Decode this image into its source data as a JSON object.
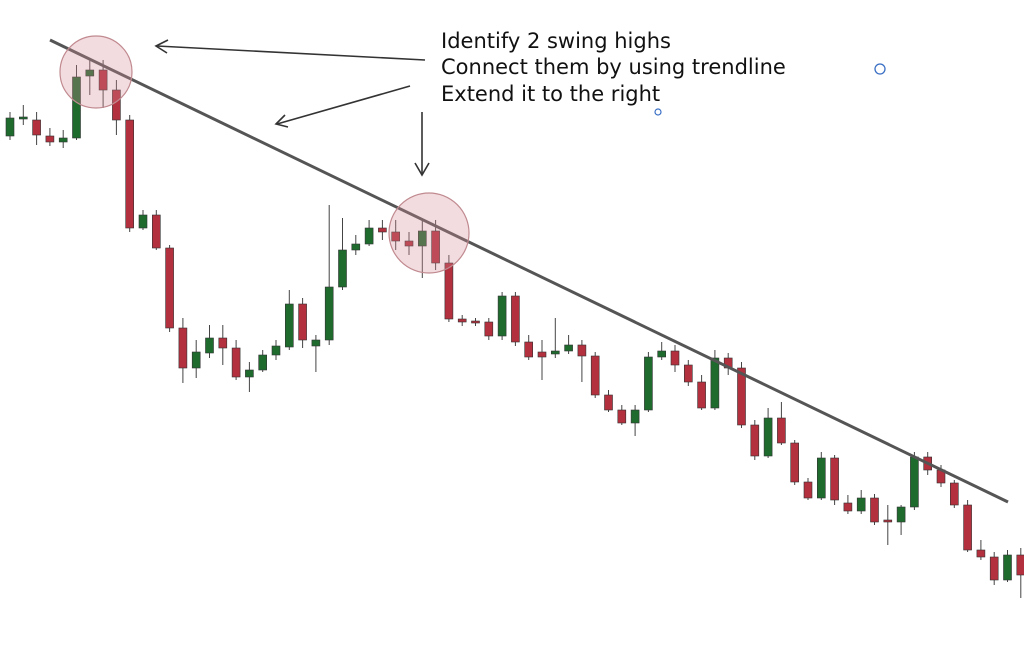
{
  "chart_data": {
    "type": "candlestick",
    "annotations": [
      "Identify 2 swing highs",
      "Connect them by using trendline",
      "Extend it to the right"
    ],
    "up_color": "#1f6b2e",
    "down_color": "#b3303e",
    "ylim": [
      0,
      600
    ],
    "open": [
      464,
      481,
      480,
      464,
      458,
      462,
      524,
      530,
      510,
      480,
      372,
      385,
      352,
      272,
      232,
      247,
      262,
      252,
      223,
      230,
      245,
      253,
      296,
      254,
      260,
      313,
      350,
      356,
      372,
      368,
      359,
      354,
      369,
      337,
      281,
      279,
      278,
      264,
      304,
      258,
      248,
      246,
      249,
      255,
      244,
      205,
      190,
      177,
      190,
      243,
      249,
      235,
      218,
      192,
      242,
      232,
      175,
      144,
      182,
      157,
      118,
      102,
      142,
      97,
      89,
      102,
      80,
      78,
      93,
      143,
      130,
      117,
      95,
      50,
      43,
      20,
      45
    ],
    "high": [
      488,
      495,
      488,
      472,
      470,
      535,
      540,
      540,
      520,
      485,
      390,
      390,
      355,
      282,
      260,
      275,
      275,
      260,
      238,
      250,
      260,
      310,
      302,
      265,
      395,
      382,
      365,
      380,
      380,
      380,
      368,
      380,
      380,
      345,
      285,
      282,
      282,
      308,
      308,
      265,
      260,
      282,
      265,
      260,
      248,
      210,
      195,
      195,
      248,
      258,
      255,
      240,
      225,
      250,
      247,
      238,
      180,
      192,
      198,
      160,
      122,
      148,
      145,
      105,
      110,
      106,
      95,
      95,
      148,
      148,
      135,
      120,
      100,
      60,
      48,
      50,
      52
    ],
    "low": [
      460,
      475,
      455,
      454,
      452,
      460,
      505,
      492,
      465,
      368,
      370,
      350,
      268,
      217,
      222,
      242,
      235,
      220,
      208,
      228,
      240,
      250,
      252,
      228,
      255,
      310,
      345,
      354,
      360,
      350,
      345,
      322,
      330,
      278,
      274,
      274,
      260,
      260,
      254,
      240,
      220,
      242,
      246,
      218,
      202,
      188,
      175,
      164,
      188,
      240,
      228,
      214,
      190,
      190,
      225,
      172,
      140,
      142,
      155,
      115,
      100,
      100,
      95,
      86,
      86,
      75,
      55,
      65,
      90,
      125,
      113,
      92,
      48,
      40,
      15,
      18,
      2
    ],
    "close": [
      482,
      483,
      465,
      458,
      462,
      523,
      530,
      510,
      480,
      372,
      385,
      352,
      272,
      232,
      248,
      262,
      252,
      223,
      230,
      245,
      254,
      296,
      260,
      260,
      313,
      350,
      356,
      372,
      368,
      359,
      354,
      369,
      337,
      281,
      278,
      277,
      264,
      304,
      258,
      243,
      243,
      249,
      255,
      244,
      205,
      190,
      177,
      190,
      243,
      249,
      235,
      218,
      192,
      242,
      232,
      175,
      144,
      182,
      157,
      118,
      102,
      142,
      100,
      89,
      102,
      78,
      78,
      93,
      143,
      130,
      117,
      95,
      50,
      43,
      20,
      45,
      25
    ]
  }
}
